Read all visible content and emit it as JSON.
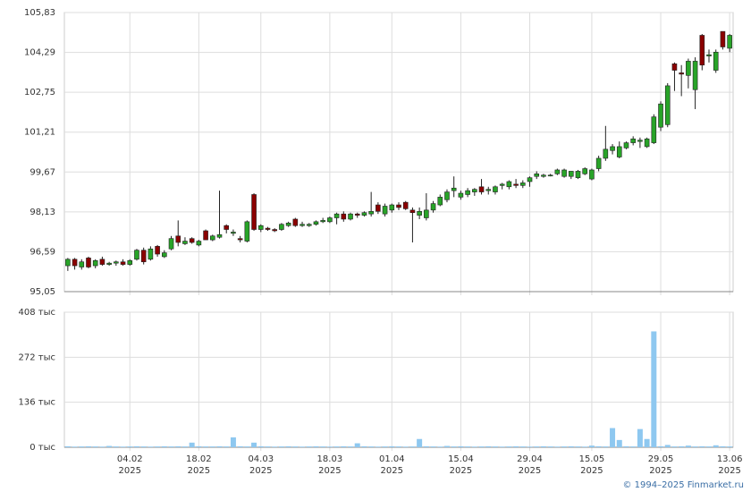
{
  "chart_data": [
    {
      "type": "candlestick",
      "up_color": "#28a428",
      "down_color": "#8b0000",
      "grid": true,
      "ylim": [
        95.05,
        105.83
      ],
      "yticks": [
        {
          "value": 95.05,
          "label": "95,05"
        },
        {
          "value": 96.59,
          "label": "96,59"
        },
        {
          "value": 98.13,
          "label": "98,13"
        },
        {
          "value": 99.67,
          "label": "99,67"
        },
        {
          "value": 101.21,
          "label": "101,21"
        },
        {
          "value": 102.75,
          "label": "102,75"
        },
        {
          "value": 104.29,
          "label": "104,29"
        },
        {
          "value": 105.83,
          "label": "105,83"
        }
      ],
      "open": [
        96.05,
        96.3,
        96.0,
        96.35,
        96.05,
        96.3,
        96.1,
        96.15,
        96.2,
        96.1,
        96.3,
        96.65,
        96.3,
        96.8,
        96.4,
        96.7,
        97.2,
        96.9,
        97.1,
        96.85,
        97.4,
        97.05,
        97.15,
        97.6,
        97.3,
        97.1,
        97.0,
        98.8,
        97.45,
        97.5,
        97.45,
        97.45,
        97.6,
        97.85,
        97.6,
        97.6,
        97.65,
        97.75,
        97.75,
        97.9,
        98.05,
        97.85,
        98.05,
        98.0,
        98.05,
        98.4,
        98.05,
        98.2,
        98.4,
        98.5,
        98.2,
        98.0,
        97.9,
        98.2,
        98.4,
        98.6,
        98.95,
        98.7,
        98.8,
        98.9,
        99.1,
        98.95,
        98.9,
        99.15,
        99.1,
        99.2,
        99.15,
        99.3,
        99.5,
        99.5,
        99.55,
        99.6,
        99.5,
        99.5,
        99.45,
        99.6,
        99.4,
        99.8,
        100.2,
        100.5,
        100.25,
        100.6,
        100.8,
        100.85,
        100.65,
        100.8,
        101.4,
        101.5,
        103.85,
        103.5,
        103.4,
        102.85,
        104.95,
        104.15,
        103.6,
        105.1,
        104.45
      ],
      "high": [
        96.35,
        96.35,
        96.3,
        96.4,
        96.3,
        96.4,
        96.2,
        96.25,
        96.3,
        96.3,
        96.7,
        96.75,
        96.8,
        96.85,
        96.65,
        97.2,
        97.8,
        97.15,
        97.15,
        97.05,
        97.45,
        97.25,
        98.95,
        97.65,
        97.45,
        97.2,
        97.8,
        98.85,
        97.65,
        97.55,
        97.5,
        97.7,
        97.75,
        97.9,
        97.75,
        97.7,
        97.8,
        97.9,
        97.95,
        98.1,
        98.15,
        98.1,
        98.1,
        98.15,
        98.9,
        98.5,
        98.45,
        98.45,
        98.5,
        98.55,
        98.3,
        98.3,
        98.85,
        98.55,
        98.8,
        99.0,
        99.5,
        98.95,
        99.05,
        99.05,
        99.4,
        99.1,
        99.15,
        99.25,
        99.35,
        99.4,
        99.35,
        99.5,
        99.7,
        99.6,
        99.6,
        99.8,
        99.8,
        99.7,
        99.75,
        99.85,
        99.8,
        100.3,
        101.45,
        100.75,
        100.85,
        100.85,
        101.05,
        101.0,
        101.0,
        101.9,
        102.4,
        103.1,
        103.9,
        103.8,
        104.05,
        104.1,
        105.0,
        104.4,
        104.4,
        105.1,
        105.0
      ],
      "low": [
        95.85,
        95.9,
        95.9,
        95.95,
        95.95,
        96.05,
        96.05,
        96.05,
        96.05,
        96.05,
        96.25,
        96.1,
        96.25,
        96.4,
        96.35,
        96.65,
        96.8,
        96.85,
        96.9,
        96.8,
        97.05,
        97.0,
        97.1,
        97.3,
        97.2,
        96.95,
        96.95,
        97.4,
        97.35,
        97.4,
        97.35,
        97.4,
        97.55,
        97.55,
        97.55,
        97.55,
        97.6,
        97.7,
        97.7,
        97.65,
        97.75,
        97.8,
        97.9,
        97.95,
        97.95,
        98.05,
        97.95,
        98.1,
        98.2,
        98.2,
        96.95,
        97.85,
        97.8,
        98.1,
        98.35,
        98.5,
        98.7,
        98.6,
        98.7,
        98.75,
        98.8,
        98.8,
        98.8,
        99.0,
        99.0,
        99.05,
        99.05,
        99.1,
        99.4,
        99.45,
        99.5,
        99.55,
        99.45,
        99.4,
        99.4,
        99.55,
        99.35,
        99.7,
        100.1,
        100.35,
        100.2,
        100.55,
        100.7,
        100.6,
        100.6,
        100.75,
        101.25,
        101.4,
        102.8,
        102.6,
        102.9,
        102.1,
        103.6,
        103.9,
        103.5,
        104.4,
        104.3
      ],
      "close": [
        96.3,
        96.05,
        96.2,
        96.0,
        96.25,
        96.1,
        96.15,
        96.2,
        96.1,
        96.25,
        96.65,
        96.2,
        96.7,
        96.5,
        96.55,
        97.1,
        96.95,
        97.0,
        96.95,
        97.0,
        97.05,
        97.2,
        97.25,
        97.45,
        97.35,
        97.05,
        97.75,
        97.45,
        97.6,
        97.45,
        97.4,
        97.65,
        97.7,
        97.6,
        97.65,
        97.65,
        97.75,
        97.8,
        97.9,
        98.05,
        97.85,
        98.05,
        98.0,
        98.1,
        98.15,
        98.15,
        98.35,
        98.4,
        98.3,
        98.25,
        98.1,
        98.15,
        98.2,
        98.45,
        98.7,
        98.9,
        99.05,
        98.85,
        98.95,
        99.0,
        98.9,
        99.0,
        99.1,
        99.2,
        99.3,
        99.15,
        99.25,
        99.45,
        99.6,
        99.55,
        99.55,
        99.75,
        99.75,
        99.7,
        99.7,
        99.8,
        99.75,
        100.2,
        100.55,
        100.65,
        100.65,
        100.8,
        100.95,
        100.9,
        100.95,
        101.8,
        102.3,
        103.0,
        103.6,
        103.45,
        103.95,
        103.95,
        103.8,
        104.2,
        104.3,
        104.5,
        104.95
      ]
    },
    {
      "type": "bar",
      "color": "#8ec8f0",
      "grid": true,
      "ylim": [
        0,
        408000
      ],
      "yticks": [
        {
          "value": 0,
          "label": "0 тыс"
        },
        {
          "value": 136000,
          "label": "136 тыс"
        },
        {
          "value": 272000,
          "label": "272 тыс"
        },
        {
          "value": 408000,
          "label": "408 тыс"
        }
      ],
      "categories": [
        null,
        null,
        null,
        null,
        null,
        null,
        null,
        null,
        null,
        "04.02\n2025",
        null,
        null,
        null,
        null,
        null,
        null,
        null,
        null,
        null,
        "18.02\n2025",
        null,
        null,
        null,
        null,
        null,
        null,
        null,
        null,
        "04.03\n2025",
        null,
        null,
        null,
        null,
        null,
        null,
        null,
        null,
        null,
        "18.03\n2025",
        null,
        null,
        null,
        null,
        null,
        null,
        null,
        null,
        "01.04\n2025",
        null,
        null,
        null,
        null,
        null,
        null,
        null,
        null,
        null,
        "15.04\n2025",
        null,
        null,
        null,
        null,
        null,
        null,
        null,
        null,
        null,
        "29.04\n2025",
        null,
        null,
        null,
        null,
        null,
        null,
        null,
        null,
        "15.05\n2025",
        null,
        null,
        null,
        null,
        null,
        null,
        null,
        null,
        null,
        "29.05\n2025",
        null,
        null,
        null,
        null,
        null,
        null,
        null,
        null,
        null,
        "13.06\n2025"
      ],
      "values": [
        3000,
        2000,
        2500,
        3000,
        2500,
        2000,
        4000,
        2500,
        2000,
        2500,
        3000,
        2500,
        2000,
        2500,
        3000,
        2500,
        3000,
        2500,
        14000,
        3000,
        2500,
        2500,
        3000,
        2500,
        30000,
        3000,
        2500,
        14000,
        3000,
        2500,
        2000,
        2500,
        3000,
        2500,
        2000,
        2500,
        3000,
        2500,
        2000,
        2500,
        3000,
        2500,
        12000,
        3000,
        2500,
        2000,
        2500,
        3000,
        2500,
        2000,
        2500,
        25000,
        3000,
        2500,
        2000,
        4000,
        2500,
        3000,
        2500,
        2000,
        2500,
        3000,
        2500,
        2000,
        2500,
        3000,
        2500,
        2000,
        2500,
        3000,
        2500,
        2000,
        2500,
        3000,
        2500,
        2000,
        5000,
        3000,
        2500,
        58000,
        22000,
        3000,
        2500,
        55000,
        25000,
        350000,
        3000,
        7000,
        2500,
        3000,
        5000,
        2500,
        3000,
        2500,
        6000,
        3000,
        2500
      ]
    },
    {
      "type": "footer",
      "text": "© 1994–2025 Finmarket.ru"
    }
  ]
}
